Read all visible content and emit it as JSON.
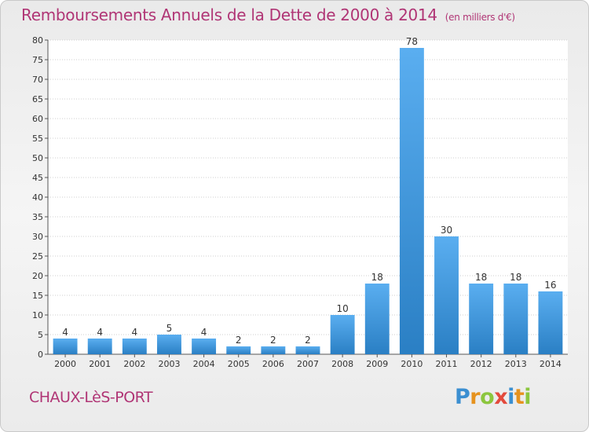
{
  "title": "Remboursements Annuels de la Dette de 2000 à 2014",
  "subtitle": "(en milliers d'€)",
  "city": "CHAUX-LèS-PORT",
  "logo": {
    "letters": [
      "P",
      "r",
      "o",
      "x",
      "i",
      "t",
      "i"
    ],
    "colors": [
      "#3b8fd1",
      "#e6921e",
      "#8cc63e",
      "#e34a3c",
      "#3b8fd1",
      "#e6921e",
      "#8cc63e"
    ]
  },
  "colors": {
    "bar_light": "#5aaef0",
    "bar_dark": "#2a7fc4",
    "title": "#b03575",
    "grid": "#cfcfcf",
    "axis": "#555555"
  },
  "chart_data": {
    "type": "bar",
    "categories": [
      "2000",
      "2001",
      "2002",
      "2003",
      "2004",
      "2005",
      "2006",
      "2007",
      "2008",
      "2009",
      "2010",
      "2011",
      "2012",
      "2013",
      "2014"
    ],
    "values": [
      4,
      4,
      4,
      5,
      4,
      2,
      2,
      2,
      10,
      18,
      78,
      30,
      18,
      18,
      16
    ],
    "title": "Remboursements Annuels de la Dette de 2000 à 2014",
    "subtitle": "(en milliers d'€)",
    "xlabel": "",
    "ylabel": "",
    "ylim": [
      0,
      80
    ],
    "yticks": [
      0,
      5,
      10,
      15,
      20,
      25,
      30,
      35,
      40,
      45,
      50,
      55,
      60,
      65,
      70,
      75,
      80
    ],
    "grid": true,
    "legend": "none"
  }
}
